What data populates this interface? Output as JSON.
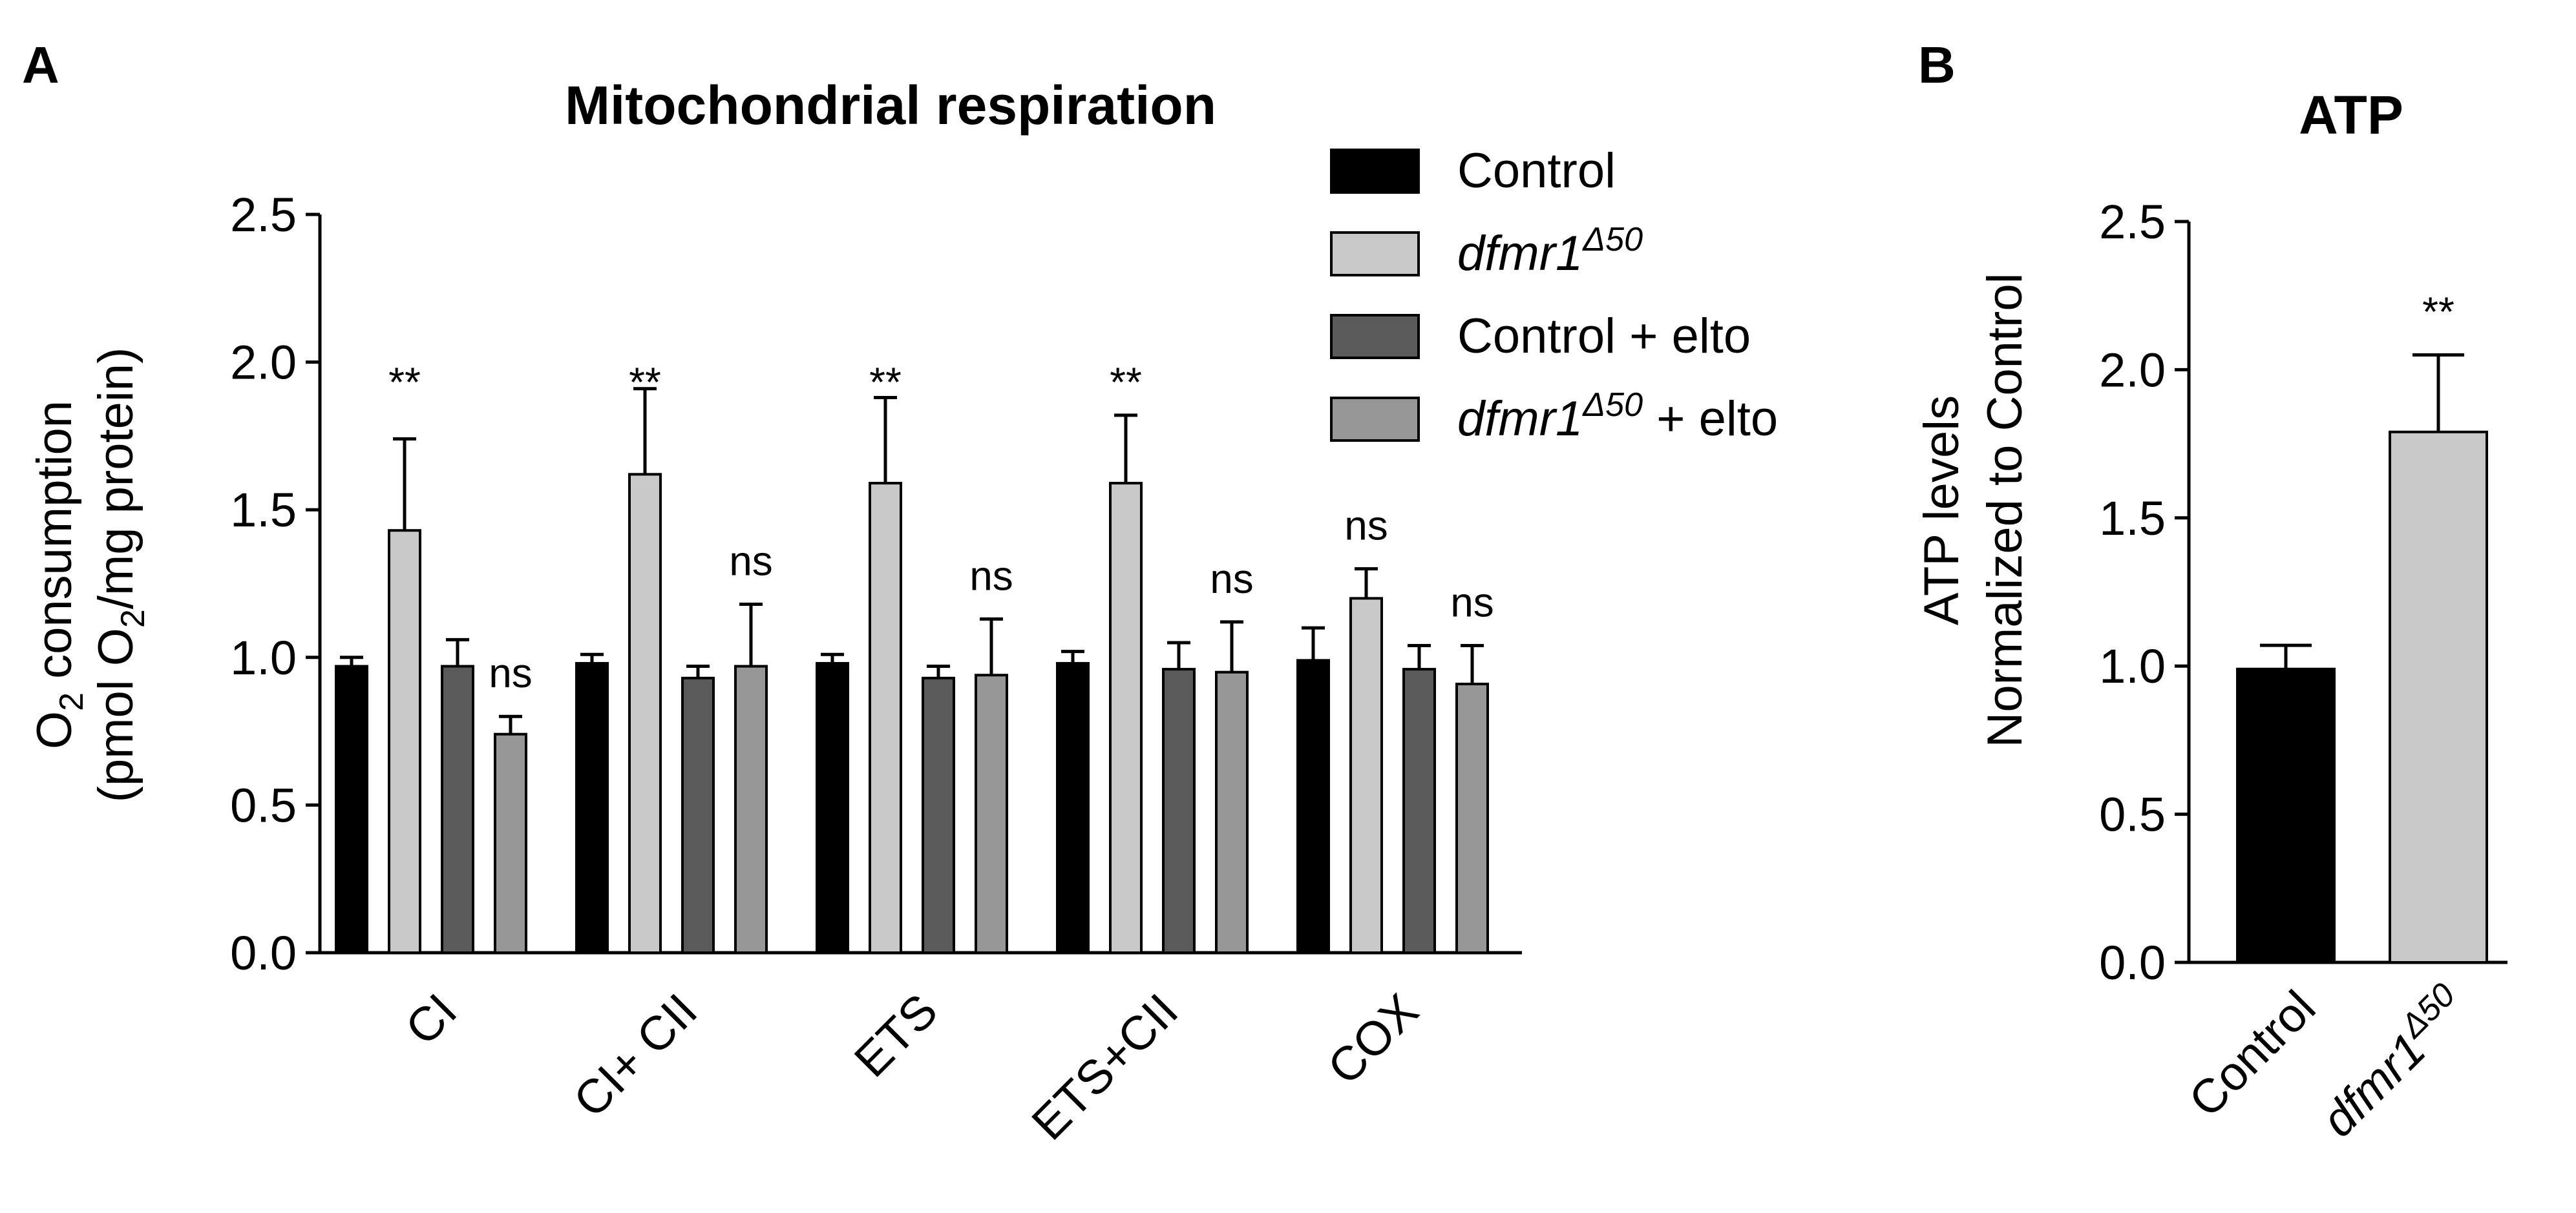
{
  "panels": {
    "a": {
      "letter": "A"
    },
    "b": {
      "letter": "B"
    }
  },
  "chart_data": [
    {
      "type": "bar",
      "title": "Mitochondrial respiration",
      "ylabel_line1": "O2 consumption",
      "ylabel_line2": "(pmol O2/mg protein)",
      "ylim": [
        0,
        2.5
      ],
      "yticks": [
        "0.0",
        "0.5",
        "1.0",
        "1.5",
        "2.0",
        "2.5"
      ],
      "categories": [
        "CI",
        "CI+ CII",
        "ETS",
        "ETS+CII",
        "COX"
      ],
      "legend_position": "top-right",
      "series": [
        {
          "name": "Control",
          "name_italic": "",
          "name_sup": "",
          "name_suffix": "",
          "color": "#000000",
          "values": [
            0.97,
            0.98,
            0.98,
            0.98,
            0.99
          ],
          "errors": [
            0.03,
            0.03,
            0.03,
            0.04,
            0.11
          ]
        },
        {
          "name": "",
          "name_italic": "dfmr1",
          "name_sup": "Δ50",
          "name_suffix": "",
          "color": "#c8c8c8",
          "values": [
            1.43,
            1.62,
            1.59,
            1.59,
            1.2
          ],
          "errors": [
            0.31,
            0.29,
            0.29,
            0.23,
            0.1
          ]
        },
        {
          "name": "Control + elto",
          "name_italic": "",
          "name_sup": "",
          "name_suffix": "",
          "color": "#5a5a5a",
          "values": [
            0.97,
            0.93,
            0.93,
            0.96,
            0.96
          ],
          "errors": [
            0.09,
            0.04,
            0.04,
            0.09,
            0.08
          ]
        },
        {
          "name": "",
          "name_italic": "dfmr1",
          "name_sup": "Δ50",
          "name_suffix": " + elto",
          "color": "#969696",
          "values": [
            0.74,
            0.97,
            0.94,
            0.95,
            0.91
          ],
          "errors": [
            0.06,
            0.21,
            0.19,
            0.17,
            0.13
          ]
        }
      ],
      "annotations": [
        {
          "category": 0,
          "series": 1,
          "text": "**"
        },
        {
          "category": 0,
          "series": 3,
          "text": "ns"
        },
        {
          "category": 1,
          "series": 1,
          "text": "**"
        },
        {
          "category": 1,
          "series": 3,
          "text": "ns"
        },
        {
          "category": 2,
          "series": 1,
          "text": "**"
        },
        {
          "category": 2,
          "series": 3,
          "text": "ns"
        },
        {
          "category": 3,
          "series": 1,
          "text": "**"
        },
        {
          "category": 3,
          "series": 3,
          "text": "ns"
        },
        {
          "category": 4,
          "series": 1,
          "text": "ns"
        },
        {
          "category": 4,
          "series": 3,
          "text": "ns"
        }
      ]
    },
    {
      "type": "bar",
      "title": "ATP",
      "ylabel_line1": "ATP levels",
      "ylabel_line2": "Normalized to Control",
      "ylim": [
        0,
        2.5
      ],
      "yticks": [
        "0.0",
        "0.5",
        "1.0",
        "1.5",
        "2.0",
        "2.5"
      ],
      "categories": [
        "Control",
        "dfmr1"
      ],
      "category_sup": [
        "",
        "Δ50"
      ],
      "category_italic": [
        false,
        true
      ],
      "colors": [
        "#000000",
        "#c8c8c8"
      ],
      "values": [
        0.99,
        1.79
      ],
      "errors": [
        0.08,
        0.26
      ],
      "annotations": [
        {
          "index": 1,
          "text": "**"
        }
      ]
    }
  ]
}
